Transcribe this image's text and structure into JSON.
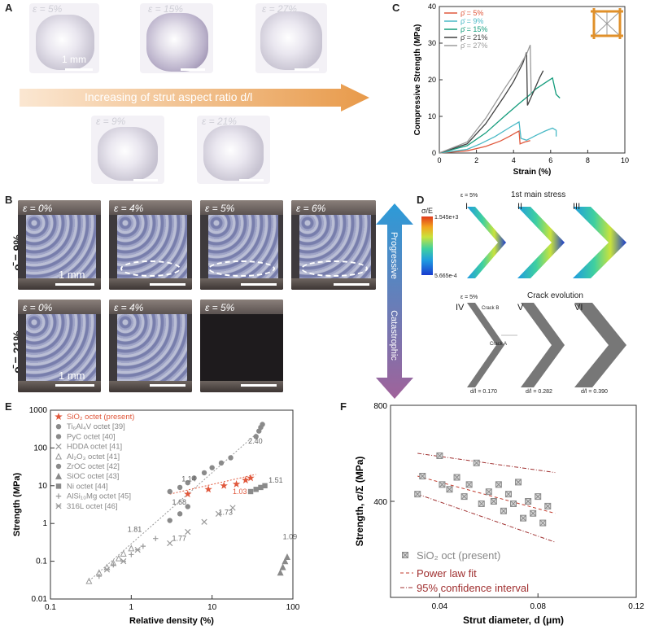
{
  "panel_labels": {
    "a": "A",
    "b": "B",
    "c": "C",
    "d": "D",
    "e": "E",
    "f": "F"
  },
  "panel_a": {
    "top_strains": [
      "ε = 5%",
      "ε = 15%",
      "ε = 27%"
    ],
    "bottom_strains": [
      "ε = 9%",
      "ε = 21%"
    ],
    "scale": "1 mm",
    "arrow_text": "Increasing of strut aspect ratio d/l"
  },
  "panel_b": {
    "row1_label": "ρ̄ = 9%",
    "row2_label": "ρ̄ = 21%",
    "row1_strains": [
      "ε = 0%",
      "ε = 4%",
      "ε = 5%",
      "ε = 6%"
    ],
    "row2_strains": [
      "ε = 0%",
      "ε = 4%",
      "ε = 5%"
    ],
    "scale": "1 mm",
    "progressive": "Progressive",
    "catastrophic": "Catastrophic"
  },
  "panel_d": {
    "title_top": "1st main stress",
    "title_bottom": "Crack evolution",
    "roman_top": [
      "I",
      "II",
      "III"
    ],
    "roman_bottom": [
      "IV",
      "V",
      "VI"
    ],
    "cbar_title": "σ/E",
    "cbar_max": "1.545e+3",
    "cbar_min": "5.665e-4",
    "eps_top": "ε = 5%",
    "eps_bottom": "ε = 5%",
    "crack_b": "Crack B",
    "crack_a": "Crack A",
    "dl_values": [
      "d/l = 0.170",
      "d/l = 0.282",
      "d/l = 0.390"
    ],
    "colors": [
      "#1a3ccf",
      "#1f9be0",
      "#3fd0a0",
      "#c9e33c",
      "#f2a51e",
      "#e03a1c"
    ]
  },
  "chart_data": [
    {
      "panel": "C",
      "type": "line",
      "xlabel": "Strain (%)",
      "ylabel": "Compressive Strength (MPa)",
      "xlim": [
        0,
        10
      ],
      "ylim": [
        0,
        40
      ],
      "xticks": [
        0,
        2,
        4,
        6,
        8,
        10
      ],
      "yticks": [
        0,
        10,
        20,
        30,
        40
      ],
      "legend_position": "top-left",
      "series": [
        {
          "name": "ρ̄ = 5%",
          "color": "#e0583c",
          "x": [
            0,
            1.5,
            2.5,
            3.3,
            3.8,
            4.1,
            4.3,
            4.35,
            4.6,
            4.9
          ],
          "y": [
            0,
            0.6,
            1.8,
            3.3,
            4.6,
            5.5,
            6.0,
            2.5,
            3.0,
            3.4
          ]
        },
        {
          "name": "ρ̄ = 9%",
          "color": "#49b9c6",
          "x": [
            0,
            1.5,
            2.2,
            3.0,
            3.8,
            4.3,
            4.4,
            4.7,
            5.2,
            5.7,
            6.1,
            6.3,
            6.3
          ],
          "y": [
            0,
            1.0,
            2.5,
            4.5,
            7.0,
            8.5,
            4.0,
            3.5,
            4.8,
            6.0,
            6.8,
            6.2,
            4.5
          ]
        },
        {
          "name": "ρ̄ = 15%",
          "color": "#149c7c",
          "x": [
            0,
            1.5,
            2.5,
            3.5,
            4.3,
            4.9,
            5.2,
            5.5,
            5.8,
            6.1,
            6.3,
            6.5
          ],
          "y": [
            0,
            2.0,
            5.5,
            10,
            13.5,
            16,
            17.5,
            18.5,
            19.5,
            20.5,
            16,
            15
          ]
        },
        {
          "name": "ρ̄ = 21%",
          "color": "#404040",
          "x": [
            0,
            1.5,
            2.5,
            3.5,
            4.0,
            4.5,
            4.7,
            4.75,
            5.1,
            5.4,
            5.6
          ],
          "y": [
            0,
            2.5,
            8.0,
            15.5,
            19.5,
            24.5,
            27.5,
            13.0,
            17.0,
            20.5,
            22.5
          ]
        },
        {
          "name": "ρ̄ = 27%",
          "color": "#9a9a9a",
          "x": [
            0,
            1.5,
            2.5,
            3.5,
            4.3,
            4.7,
            4.9,
            4.95
          ],
          "y": [
            0,
            3.0,
            9.5,
            17.5,
            23.5,
            27.0,
            29.5,
            16.0
          ]
        }
      ]
    },
    {
      "panel": "E",
      "type": "scatter",
      "xlabel": "Relative density (%)",
      "ylabel": "Strength (MPa)",
      "xscale": "log",
      "yscale": "log",
      "xlim": [
        0.1,
        100
      ],
      "ylim": [
        0.01,
        1000
      ],
      "xtick_labels": [
        "0.1",
        "1",
        "10",
        "100"
      ],
      "ytick_labels": [
        "0.01",
        "0.1",
        "1",
        "10",
        "100",
        "1000"
      ],
      "legend_position": "top-left",
      "series": [
        {
          "name": "SiO₂ octet (present)",
          "color": "#e0583c",
          "marker": "star",
          "x": [
            5,
            9,
            14,
            20,
            26,
            30
          ],
          "y": [
            6,
            8,
            10,
            11,
            14,
            16
          ]
        },
        {
          "name": "Ti₆Al₄V octet [39]",
          "color": "#8a8a8a",
          "marker": "hex",
          "x": [
            35,
            38,
            40,
            42
          ],
          "y": [
            200,
            280,
            350,
            420
          ]
        },
        {
          "name": "PyC octet [40]",
          "color": "#8a8a8a",
          "marker": "circle",
          "x": [
            3,
            4,
            5,
            6,
            8,
            10,
            13,
            17
          ],
          "y": [
            7,
            9,
            12,
            16,
            22,
            30,
            40,
            55
          ]
        },
        {
          "name": "HDDA octet [41]",
          "color": "#9a9a9a",
          "marker": "x",
          "x": [
            3,
            5,
            8,
            12,
            18
          ],
          "y": [
            0.3,
            0.6,
            1.1,
            1.8,
            2.6
          ]
        },
        {
          "name": "Al₂O₃ octet [41]",
          "color": "#9a9a9a",
          "marker": "triangle-open",
          "x": [
            0.3,
            0.4,
            0.5,
            0.6,
            0.7,
            0.8,
            1.0
          ],
          "y": [
            0.03,
            0.05,
            0.07,
            0.09,
            0.12,
            0.16,
            0.22
          ]
        },
        {
          "name": "ZrOC octet [42]",
          "color": "#8a8a8a",
          "marker": "circle",
          "x": [
            3,
            4,
            5
          ],
          "y": [
            1.2,
            1.8,
            2.8
          ]
        },
        {
          "name": "SiOC octet [43]",
          "color": "#8a8a8a",
          "marker": "triangle",
          "x": [
            70,
            75,
            80,
            85
          ],
          "y": [
            0.05,
            0.07,
            0.1,
            0.13
          ]
        },
        {
          "name": "Ni octet [44]",
          "color": "#8a8a8a",
          "marker": "square",
          "x": [
            30,
            35,
            40,
            45
          ],
          "y": [
            7,
            8,
            9,
            10
          ]
        },
        {
          "name": "AlSi₁₀Mg octet [45]",
          "color": "#9a9a9a",
          "marker": "plus",
          "x": [
            0.4,
            0.6,
            1.0,
            1.4,
            2.0
          ],
          "y": [
            0.04,
            0.08,
            0.15,
            0.25,
            0.4
          ]
        },
        {
          "name": "316L octet [46]",
          "color": "#9a9a9a",
          "marker": "asterisk",
          "x": [
            0.5,
            0.8,
            1.2
          ],
          "y": [
            0.06,
            0.1,
            0.2
          ]
        }
      ],
      "annotations": [
        "1.14",
        "2.40",
        "1.68",
        "1.03",
        "1.73",
        "1.51",
        "1.81",
        "1.77",
        "1.09"
      ]
    },
    {
      "panel": "F",
      "type": "scatter",
      "xlabel": "Strut diameter, d (μm)",
      "ylabel": "Strength, σ/Σ (MPa)",
      "xlim": [
        0.02,
        0.12
      ],
      "ylim": [
        0,
        800
      ],
      "xtick_labels": [
        "0.04",
        "0.08",
        "0.12"
      ],
      "ytick_labels": [
        "400",
        "800"
      ],
      "legend_position": "bottom-left",
      "series": [
        {
          "name": "SiO₂ oct (present)",
          "color": "#8a8a8a",
          "marker": "boxed-x",
          "x": [
            0.031,
            0.033,
            0.04,
            0.041,
            0.044,
            0.047,
            0.05,
            0.052,
            0.055,
            0.057,
            0.06,
            0.062,
            0.064,
            0.066,
            0.068,
            0.07,
            0.072,
            0.074,
            0.076,
            0.078,
            0.08,
            0.082,
            0.084
          ],
          "y": [
            430,
            505,
            590,
            470,
            450,
            500,
            420,
            470,
            560,
            390,
            440,
            400,
            470,
            360,
            430,
            390,
            480,
            330,
            400,
            350,
            420,
            310,
            380
          ]
        }
      ],
      "legend_lines": [
        "Power law fit",
        "95% confidence interval"
      ]
    }
  ]
}
